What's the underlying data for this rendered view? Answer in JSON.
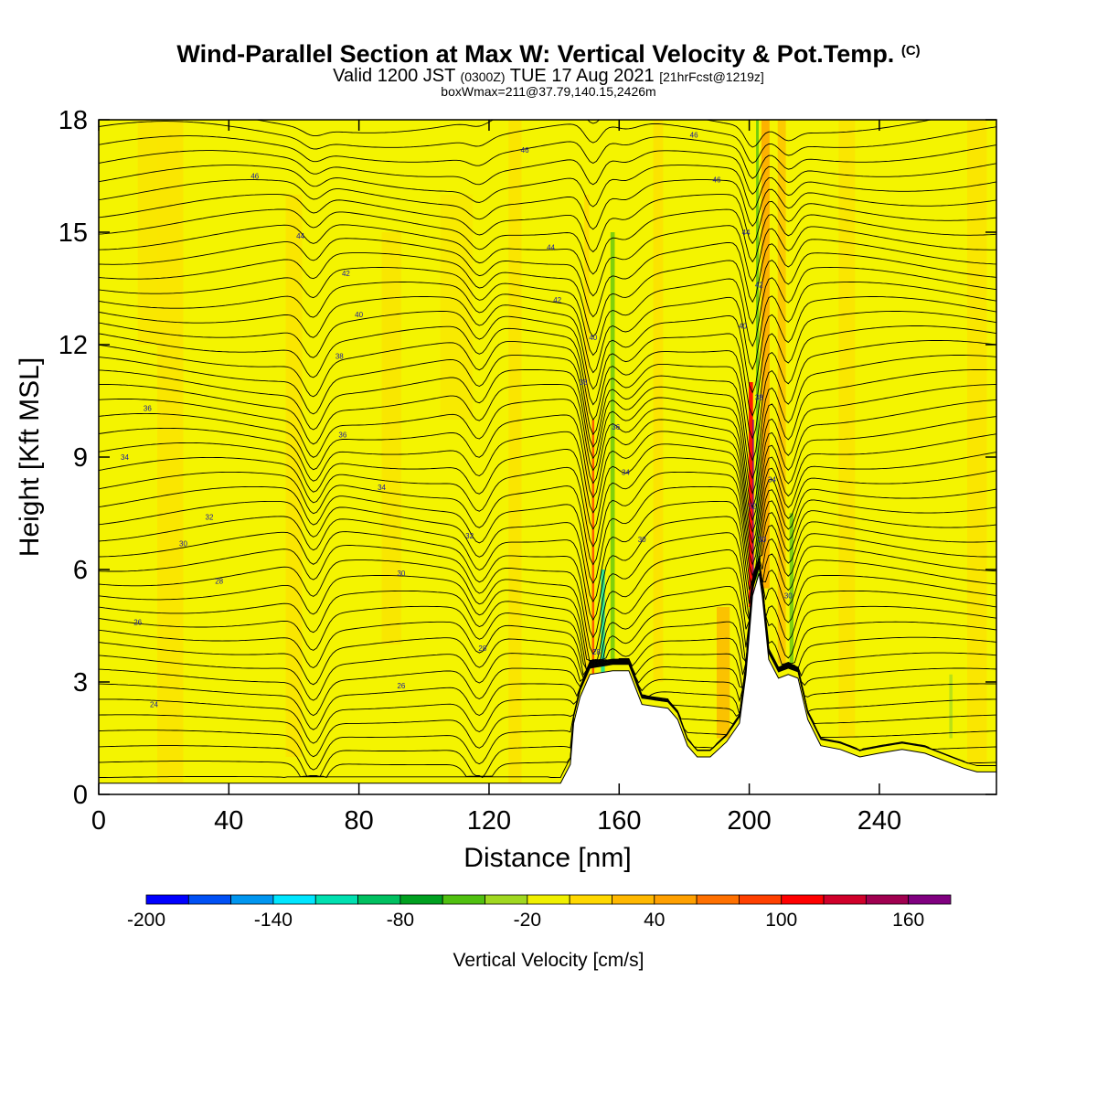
{
  "title": {
    "main": "Wind-Parallel Section at Max W: Vertical Velocity & Pot.Temp.",
    "copyright": "(C)",
    "valid_prefix": "Valid 1200 JST",
    "valid_utc": "(0300Z)",
    "valid_date": "TUE 17 Aug 2021",
    "forecast": "[21hrFcst@1219z]",
    "boxwmax": "boxWmax=211@37.79,140.15,2426m"
  },
  "chart_data": {
    "type": "heatmap",
    "xlabel": "Distance [nm]",
    "ylabel": "Height [Kft MSL]",
    "xlim": [
      0,
      276
    ],
    "ylim": [
      0,
      18
    ],
    "xticks": [
      0,
      40,
      80,
      120,
      160,
      200,
      240
    ],
    "yticks": [
      0,
      3,
      6,
      9,
      12,
      15,
      18
    ],
    "colorbar": {
      "title": "Vertical Velocity [cm/s]",
      "boundaries": [
        -200,
        -180,
        -160,
        -140,
        -120,
        -100,
        -80,
        -60,
        -40,
        -20,
        0,
        20,
        40,
        60,
        80,
        100,
        120,
        140,
        160,
        180
      ],
      "colors": [
        "#0000ff",
        "#0050f5",
        "#0096f0",
        "#00e6ff",
        "#00e0b0",
        "#00c060",
        "#00a020",
        "#50c010",
        "#a0d820",
        "#f0f000",
        "#ffd800",
        "#ffb800",
        "#ffa000",
        "#ff7000",
        "#ff4000",
        "#ff0000",
        "#d0002a",
        "#a00050",
        "#800080"
      ],
      "tick_labels": [
        -200,
        -140,
        -80,
        -20,
        40,
        100,
        160
      ]
    },
    "theta_contour_labels": [
      {
        "x": 48,
        "y": 16.5,
        "label": "46"
      },
      {
        "x": 131,
        "y": 17.2,
        "label": "46"
      },
      {
        "x": 183,
        "y": 17.6,
        "label": "46"
      },
      {
        "x": 190,
        "y": 16.4,
        "label": "46"
      },
      {
        "x": 62,
        "y": 14.9,
        "label": "44"
      },
      {
        "x": 139,
        "y": 14.6,
        "label": "44"
      },
      {
        "x": 199,
        "y": 15.0,
        "label": "44"
      },
      {
        "x": 76,
        "y": 13.9,
        "label": "42"
      },
      {
        "x": 141,
        "y": 13.2,
        "label": "42"
      },
      {
        "x": 203,
        "y": 13.6,
        "label": "42"
      },
      {
        "x": 80,
        "y": 12.8,
        "label": "40"
      },
      {
        "x": 152,
        "y": 12.2,
        "label": "40"
      },
      {
        "x": 198,
        "y": 12.5,
        "label": "40"
      },
      {
        "x": 74,
        "y": 11.7,
        "label": "38"
      },
      {
        "x": 149,
        "y": 11.0,
        "label": "38"
      },
      {
        "x": 203,
        "y": 10.6,
        "label": "38"
      },
      {
        "x": 15,
        "y": 10.3,
        "label": "36"
      },
      {
        "x": 75,
        "y": 9.6,
        "label": "36"
      },
      {
        "x": 159,
        "y": 9.8,
        "label": "36"
      },
      {
        "x": 8,
        "y": 9.0,
        "label": "34"
      },
      {
        "x": 87,
        "y": 8.2,
        "label": "34"
      },
      {
        "x": 162,
        "y": 8.6,
        "label": "34"
      },
      {
        "x": 207,
        "y": 8.4,
        "label": "34"
      },
      {
        "x": 34,
        "y": 7.4,
        "label": "32"
      },
      {
        "x": 114,
        "y": 6.9,
        "label": "32"
      },
      {
        "x": 201,
        "y": 7.7,
        "label": "32"
      },
      {
        "x": 26,
        "y": 6.7,
        "label": "30"
      },
      {
        "x": 93,
        "y": 5.9,
        "label": "30"
      },
      {
        "x": 167,
        "y": 6.8,
        "label": "30"
      },
      {
        "x": 204,
        "y": 6.8,
        "label": "30"
      },
      {
        "x": 212,
        "y": 5.3,
        "label": "30"
      },
      {
        "x": 37,
        "y": 5.7,
        "label": "28"
      },
      {
        "x": 118,
        "y": 3.9,
        "label": "28"
      },
      {
        "x": 153,
        "y": 3.8,
        "label": "28"
      },
      {
        "x": 12,
        "y": 4.6,
        "label": "26"
      },
      {
        "x": 93,
        "y": 2.9,
        "label": "26"
      },
      {
        "x": 17,
        "y": 2.4,
        "label": "24"
      }
    ],
    "terrain_top_kft": [
      [
        0,
        0.3
      ],
      [
        142,
        0.3
      ],
      [
        145,
        0.8
      ],
      [
        146,
        1.9
      ],
      [
        148,
        2.6
      ],
      [
        151,
        3.2
      ],
      [
        158,
        3.3
      ],
      [
        163,
        3.3
      ],
      [
        167,
        2.4
      ],
      [
        175,
        2.3
      ],
      [
        178,
        2.0
      ],
      [
        181,
        1.3
      ],
      [
        184,
        1.0
      ],
      [
        188,
        1.0
      ],
      [
        193,
        1.4
      ],
      [
        197,
        1.9
      ],
      [
        199,
        3.2
      ],
      [
        201,
        5.3
      ],
      [
        203,
        5.9
      ],
      [
        204,
        5.3
      ],
      [
        206,
        3.6
      ],
      [
        209,
        3.1
      ],
      [
        212,
        3.2
      ],
      [
        215,
        3.1
      ],
      [
        218,
        2.0
      ],
      [
        222,
        1.3
      ],
      [
        228,
        1.2
      ],
      [
        234,
        1.0
      ],
      [
        240,
        1.1
      ],
      [
        247,
        1.2
      ],
      [
        254,
        1.1
      ],
      [
        260,
        0.9
      ],
      [
        266,
        0.7
      ],
      [
        270,
        0.6
      ],
      [
        276,
        0.6
      ]
    ]
  }
}
